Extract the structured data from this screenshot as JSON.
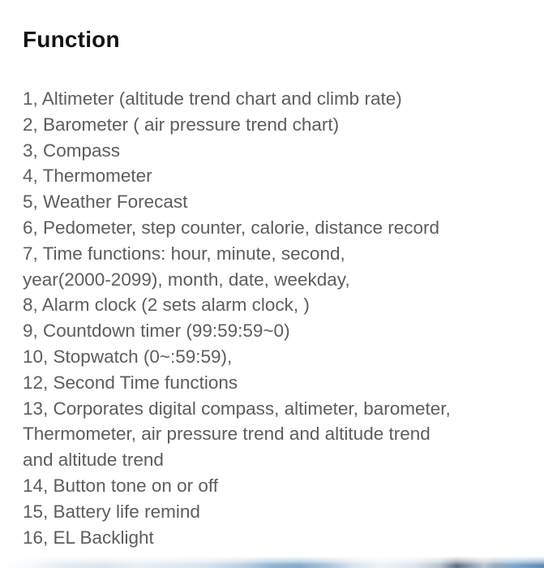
{
  "header": {
    "title": "Function"
  },
  "function_list": {
    "items": [
      {
        "lines": [
          "1, Altimeter (altitude trend chart and climb rate)"
        ]
      },
      {
        "lines": [
          "2, Barometer ( air pressure trend chart)"
        ]
      },
      {
        "lines": [
          "3, Compass"
        ]
      },
      {
        "lines": [
          "4, Thermometer"
        ]
      },
      {
        "lines": [
          "5, Weather Forecast"
        ]
      },
      {
        "lines": [
          "6, Pedometer, step counter, calorie, distance record"
        ]
      },
      {
        "lines": [
          "7, Time functions: hour, minute, second,",
          "year(2000-2099), month, date, weekday,"
        ]
      },
      {
        "lines": [
          "8, Alarm clock (2 sets alarm clock, )"
        ]
      },
      {
        "lines": [
          "9, Countdown timer (99:59:59~0)"
        ]
      },
      {
        "lines": [
          "10, Stopwatch (0~:59:59),"
        ]
      },
      {
        "lines": [
          "12, Second Time functions"
        ]
      },
      {
        "lines": [
          "13, Corporates digital compass, altimeter, barometer,",
          "Thermometer, air pressure trend and altitude trend",
          "and altitude trend"
        ]
      },
      {
        "lines": [
          "14, Button tone on or off"
        ]
      },
      {
        "lines": [
          "15, Battery life remind"
        ]
      },
      {
        "lines": [
          "16, EL Backlight"
        ]
      }
    ]
  },
  "colors": {
    "background": "#ffffff",
    "heading_text": "#141414",
    "body_text": "#5c5d5f",
    "strip_steel_blue": "#84aacd",
    "strip_slate": "#5f7187"
  }
}
